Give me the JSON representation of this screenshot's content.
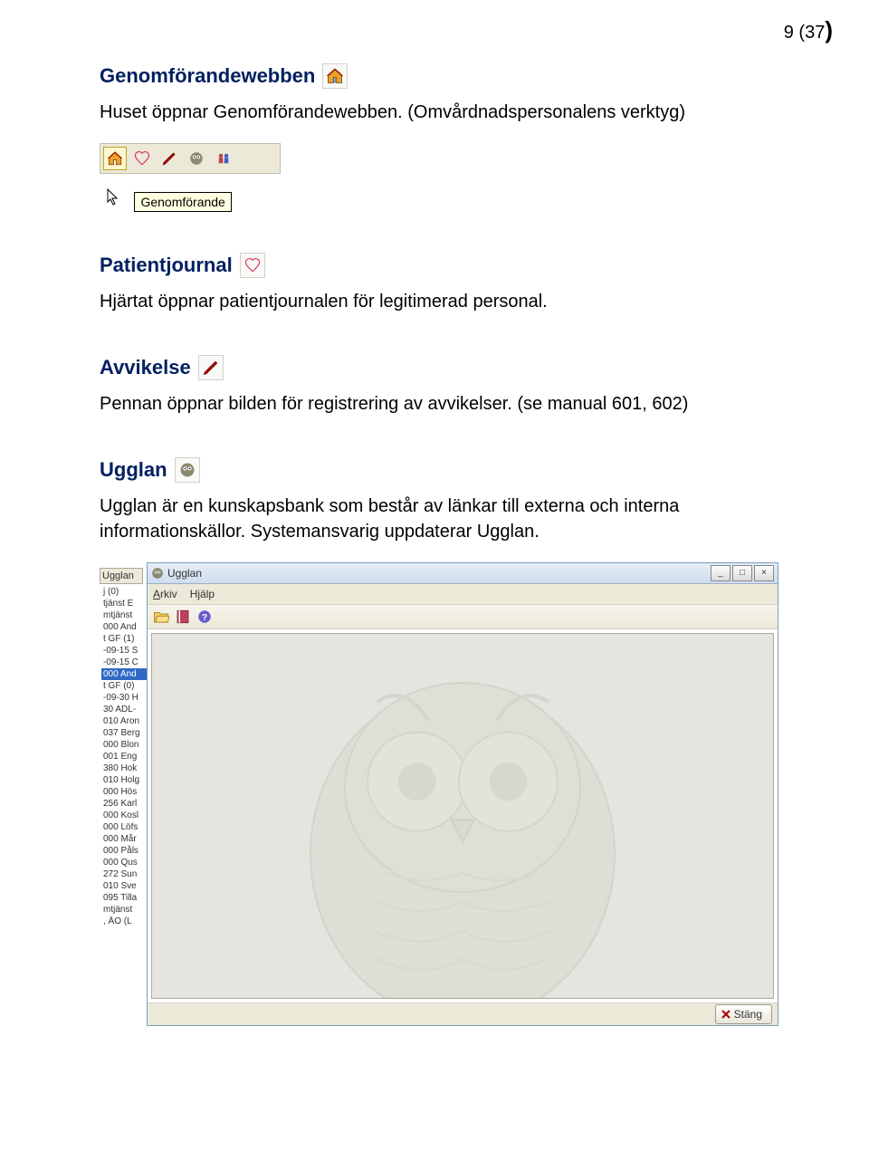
{
  "page_number_current": "9",
  "page_number_total": "37",
  "section1": {
    "title": "Genomförandewebben",
    "body": "Huset öppnar Genomförandewebben. (Omvårdnadspersonalens verktyg)",
    "tooltip": "Genomförande"
  },
  "section2": {
    "title": "Patientjournal",
    "body": "Hjärtat öppnar patientjournalen för legitimerad personal."
  },
  "section3": {
    "title": "Avvikelse",
    "body": "Pennan öppnar bilden för registrering av avvikelser. (se manual 601, 602)"
  },
  "section4": {
    "title": "Ugglan",
    "body": "Ugglan är en kunskapsbank som består av länkar till externa och interna informationskällor. Systemansvarig uppdaterar Ugglan."
  },
  "ugglan_window": {
    "title": "Ugglan",
    "menu_arkiv": "Arkiv",
    "menu_hjalp": "Hjälp",
    "close_label": "Stäng"
  },
  "side_tab": "Ugglan",
  "side_items": [
    "j (0)",
    "tjänst E",
    "mtjänst",
    "000 And",
    "t GF (1)",
    "",
    "-09-15 S",
    "-09-15 C",
    "000 And",
    "t GF (0)",
    "",
    "-09-30 H",
    "30 ADL-",
    "010 Aron",
    "037 Berg",
    "000 Blon",
    "001 Eng",
    "380 Hok",
    "010 Holg",
    "000 Hös",
    "256 Karl",
    "000 Kosl",
    "000 Löfs",
    "000 Mår",
    "000 Påls",
    "000 Qus",
    "272 Sun",
    "010 Sve",
    "095 Tilla",
    "mtjänst",
    ", ÄO (L"
  ],
  "side_highlight_index": 8,
  "colors": {
    "heading": "#002060",
    "tooltip_bg": "#ffffe1",
    "win_bg": "#ece9d8",
    "owl_bg": "#e5e4de",
    "highlight": "#316ac5"
  }
}
